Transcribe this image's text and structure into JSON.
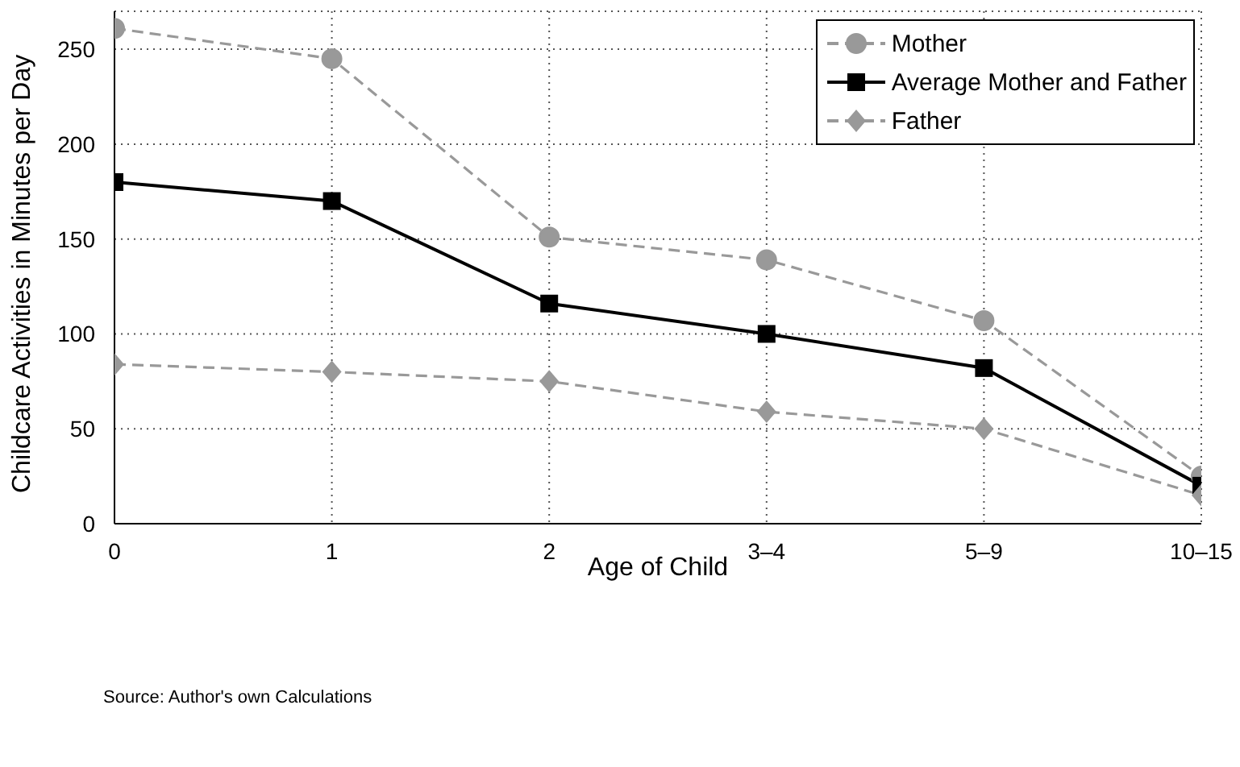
{
  "chart_data": {
    "type": "line",
    "xlabel": "Age of Child",
    "ylabel": "Childcare Activities in Minutes per Day",
    "categories": [
      "0",
      "1",
      "2",
      "3–4",
      "5–9",
      "10–15"
    ],
    "series": [
      {
        "name": "Mother",
        "color": "#999999",
        "values": [
          261,
          245,
          151,
          139,
          107,
          25
        ],
        "marker": "circle",
        "line_style": "dashed"
      },
      {
        "name": "Average Mother and Father",
        "color": "#000000",
        "values": [
          180,
          170,
          116,
          100,
          82,
          20
        ],
        "marker": "square",
        "line_style": "solid"
      },
      {
        "name": "Father",
        "color": "#999999",
        "values": [
          84,
          80,
          75,
          59,
          50,
          15
        ],
        "marker": "diamond",
        "line_style": "dashed"
      }
    ],
    "ylim": [
      0,
      270
    ],
    "yticks": [
      0,
      50,
      100,
      150,
      200,
      250
    ],
    "grid": true,
    "legend": "top right",
    "annotations": [
      "Source: Author's own Calculations"
    ]
  }
}
